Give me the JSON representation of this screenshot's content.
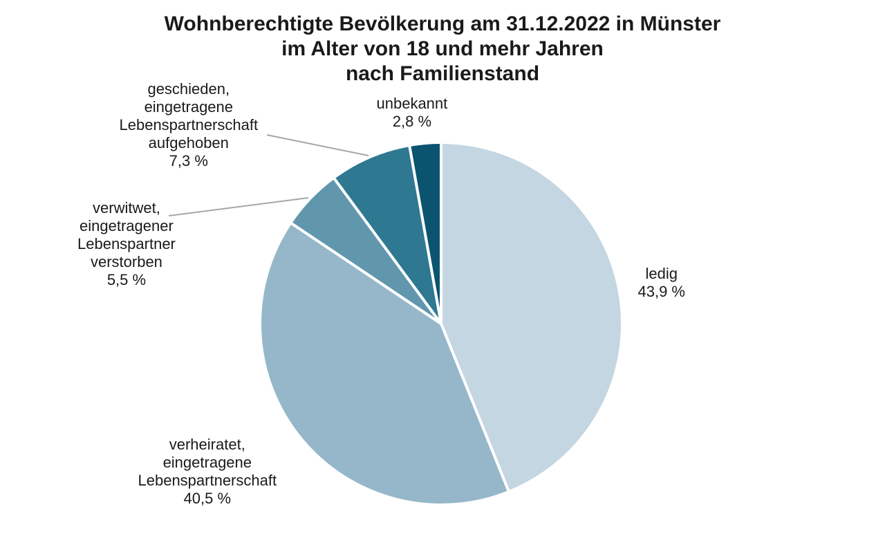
{
  "chart_data": {
    "type": "pie",
    "title": [
      "Wohnberechtigte Bevölkerung am 31.12.2022 in Münster",
      "im Alter von 18 und mehr Jahren",
      "nach Familienstand"
    ],
    "slices": [
      {
        "label": [
          "ledig"
        ],
        "value": 43.9,
        "value_label": "43,9 %",
        "color": "#c3d6e2"
      },
      {
        "label": [
          "verheiratet,",
          "eingetragene",
          "Lebenspartnerschaft"
        ],
        "value": 40.5,
        "value_label": "40,5 %",
        "color": "#95b7c9"
      },
      {
        "label": [
          "verwitwet,",
          "eingetragener",
          "Lebenspartner",
          "verstorben"
        ],
        "value": 5.5,
        "value_label": "5,5 %",
        "color": "#6097ad"
      },
      {
        "label": [
          "geschieden,",
          "eingetragene",
          "Lebenspartnerschaft",
          "aufgehoben"
        ],
        "value": 7.3,
        "value_label": "7,3 %",
        "color": "#2e7891"
      },
      {
        "label": [
          "unbekannt"
        ],
        "value": 2.8,
        "value_label": "2,8 %",
        "color": "#0b5470"
      }
    ],
    "start_angle_deg": 0,
    "direction": "clockwise",
    "slice_border_color": "#ffffff",
    "leader_line_color": "#a6a6a6",
    "legend": "none"
  }
}
